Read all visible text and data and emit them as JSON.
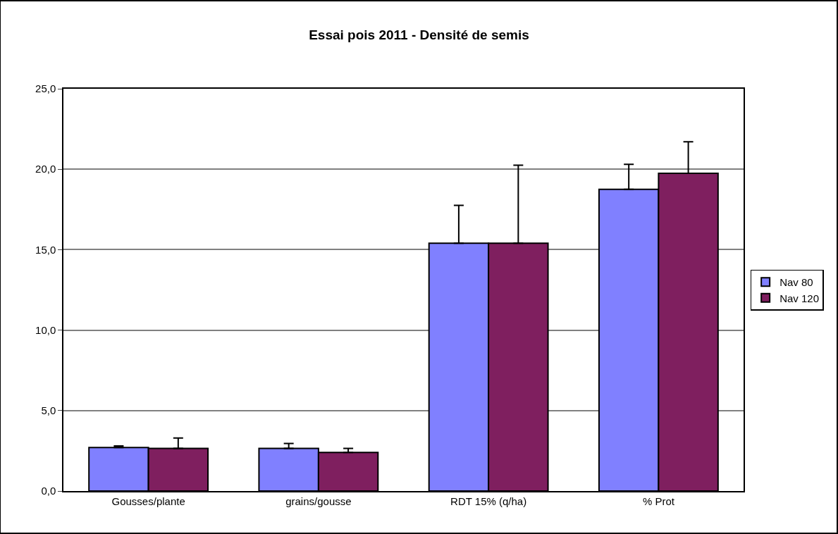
{
  "chart_data": {
    "type": "bar",
    "title": "Essai pois 2011 - Densité de semis",
    "categories": [
      "Gousses/plante",
      "grains/gousse",
      "RDT 15% (q/ha)",
      "% Prot"
    ],
    "series": [
      {
        "name": "Nav 80",
        "color": "#8080ff",
        "values": [
          2.7,
          2.65,
          15.4,
          18.75
        ],
        "errors": [
          [
            2.7,
            2.8
          ],
          [
            2.65,
            2.95
          ],
          [
            15.4,
            17.75
          ],
          [
            18.75,
            20.3
          ]
        ]
      },
      {
        "name": "Nav 120",
        "color": "#7f1f5f",
        "values": [
          2.65,
          2.4,
          15.4,
          19.75
        ],
        "errors": [
          [
            2.65,
            3.3
          ],
          [
            2.4,
            2.65
          ],
          [
            15.4,
            20.25
          ],
          [
            19.75,
            21.7
          ]
        ]
      }
    ],
    "ylim": [
      0,
      25
    ],
    "yticks": [
      {
        "value": 0,
        "label": "0,0"
      },
      {
        "value": 5,
        "label": "5,0"
      },
      {
        "value": 10,
        "label": "10,0"
      },
      {
        "value": 15,
        "label": "15,0"
      },
      {
        "value": 20,
        "label": "20,0"
      },
      {
        "value": 25,
        "label": "25,0"
      }
    ],
    "grid": "y",
    "legend": "right"
  }
}
